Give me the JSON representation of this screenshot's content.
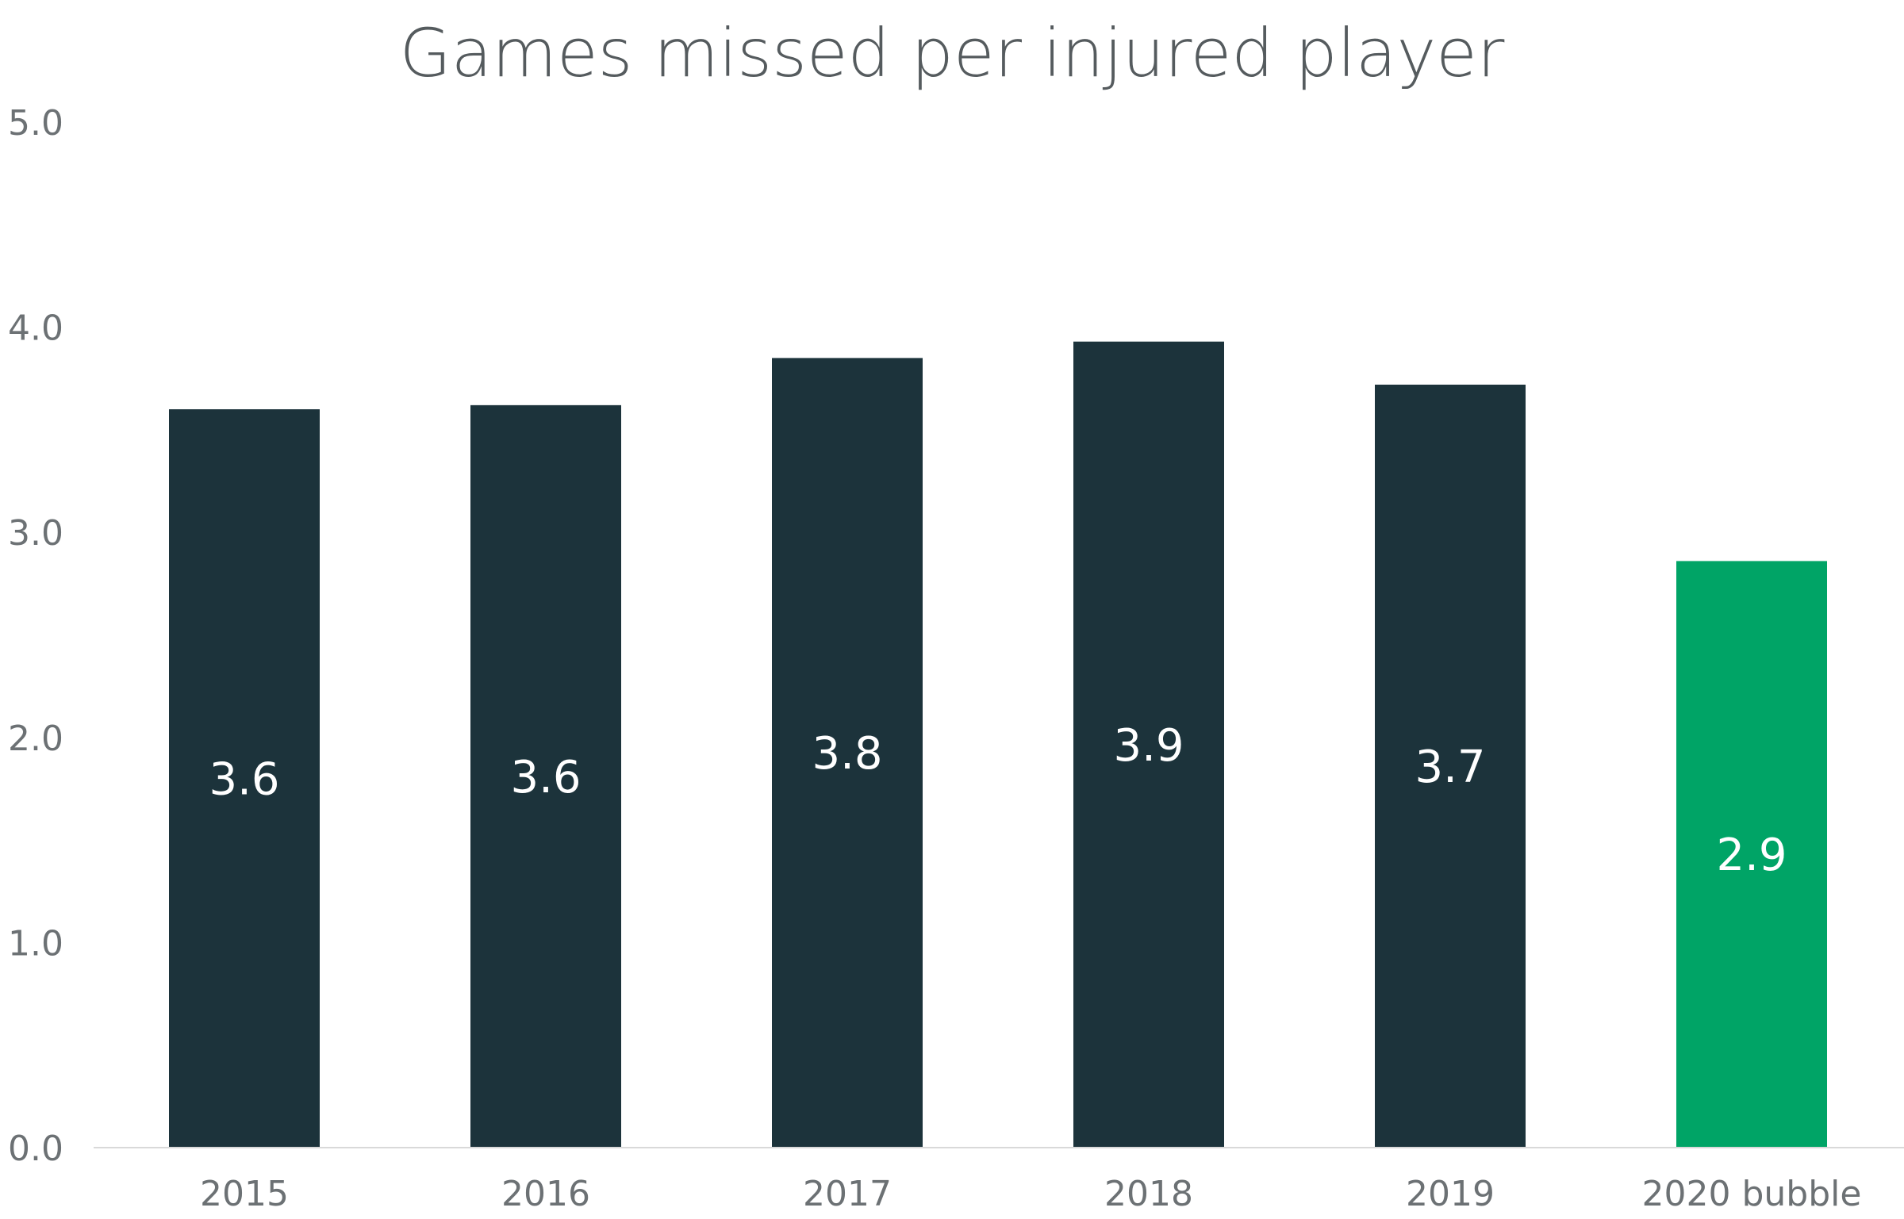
{
  "chart_data": {
    "type": "bar",
    "title": "Games missed per injured player",
    "xlabel": "",
    "ylabel": "",
    "categories": [
      "2015",
      "2016",
      "2017",
      "2018",
      "2019",
      "2020 bubble"
    ],
    "values": [
      3.6,
      3.62,
      3.85,
      3.93,
      3.72,
      2.86
    ],
    "data_labels": [
      "3.6",
      "3.6",
      "3.8",
      "3.9",
      "3.7",
      "2.9"
    ],
    "ylim": [
      0,
      5
    ],
    "y_ticks": [
      0,
      1,
      2,
      3,
      4,
      5
    ],
    "y_tick_labels": [
      "0.0",
      "1.0",
      "2.0",
      "3.0",
      "4.0",
      "5.0"
    ],
    "grid": false,
    "legend": "none",
    "colors": {
      "default_bar": "#1c333b",
      "highlight_bar": "#00a466",
      "highlight_categories": [
        "2020 bubble"
      ],
      "title": "#555b5e",
      "tick_label": "#6c7174",
      "data_label": "#ffffff",
      "axis_line": "#d9d9d9"
    }
  }
}
